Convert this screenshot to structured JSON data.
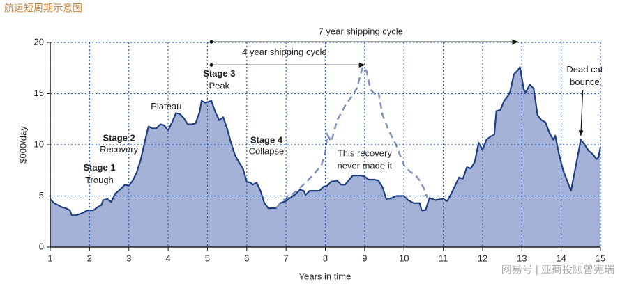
{
  "chart_data": {
    "type": "area",
    "title": "航运短周期示意图",
    "xlabel": "Years in time",
    "ylabel": "$000/day",
    "xlim": [
      1,
      15
    ],
    "ylim": [
      0,
      20
    ],
    "xticks": [
      1,
      2,
      3,
      4,
      5,
      6,
      7,
      8,
      9,
      10,
      11,
      12,
      13,
      14,
      15
    ],
    "yticks": [
      0,
      5,
      10,
      15,
      20
    ],
    "grid": true,
    "series": [
      {
        "style": "area",
        "color": "#a5b2d7",
        "line_color": "#1f3f80",
        "x": [
          1.0,
          1.1,
          1.2,
          1.3,
          1.4,
          1.5,
          1.55,
          1.65,
          1.8,
          1.95,
          2.1,
          2.2,
          2.3,
          2.35,
          2.45,
          2.55,
          2.65,
          2.8,
          2.9,
          3.0,
          3.1,
          3.2,
          3.3,
          3.4,
          3.5,
          3.6,
          3.7,
          3.8,
          3.9,
          4.0,
          4.1,
          4.2,
          4.3,
          4.4,
          4.5,
          4.6,
          4.7,
          4.8,
          4.85,
          4.95,
          5.1,
          5.2,
          5.3,
          5.4,
          5.5,
          5.6,
          5.7,
          5.8,
          5.9,
          6.0,
          6.1,
          6.15,
          6.25,
          6.35,
          6.45,
          6.55,
          6.75,
          6.85,
          7.0,
          7.1,
          7.25,
          7.35,
          7.45,
          7.5,
          7.6,
          7.7,
          7.85,
          7.95,
          8.05,
          8.15,
          8.3,
          8.4,
          8.5,
          8.7,
          8.9,
          9.0,
          9.1,
          9.25,
          9.35,
          9.45,
          9.55,
          9.7,
          9.8,
          10.0,
          10.1,
          10.25,
          10.4,
          10.45,
          10.55,
          10.65,
          10.8,
          11.0,
          11.1,
          11.2,
          11.3,
          11.4,
          11.5,
          11.6,
          11.7,
          11.8,
          11.9,
          12.0,
          12.1,
          12.2,
          12.3,
          12.35,
          12.45,
          12.55,
          12.65,
          12.7,
          12.8,
          12.9,
          12.95,
          13.05,
          13.1,
          13.2,
          13.3,
          13.4,
          13.5,
          13.6,
          13.7,
          13.8,
          13.85,
          13.95,
          14.05,
          14.15,
          14.25,
          14.35,
          14.45,
          14.5,
          14.6,
          14.7,
          14.8,
          14.9,
          14.95,
          15.0
        ],
        "values": [
          4.7,
          4.3,
          4.1,
          3.9,
          3.8,
          3.6,
          3.1,
          3.1,
          3.3,
          3.6,
          3.6,
          3.9,
          4.1,
          4.6,
          4.7,
          4.4,
          5.2,
          5.7,
          6.1,
          6.0,
          6.5,
          7.3,
          8.5,
          10.2,
          11.8,
          11.6,
          11.6,
          12.0,
          11.9,
          11.4,
          12.2,
          13.1,
          13.0,
          12.6,
          12.0,
          12.0,
          12.1,
          13.2,
          14.3,
          14.1,
          14.3,
          13.2,
          12.4,
          12.7,
          11.6,
          10.2,
          9.0,
          8.3,
          7.7,
          6.4,
          6.3,
          6.1,
          6.3,
          5.5,
          4.3,
          3.8,
          3.8,
          4.3,
          4.5,
          4.8,
          5.2,
          5.6,
          5.5,
          5.1,
          5.5,
          5.5,
          5.5,
          5.9,
          6.0,
          6.4,
          6.5,
          6.1,
          6.1,
          7.0,
          7.0,
          6.9,
          6.6,
          6.6,
          6.5,
          5.9,
          4.7,
          4.8,
          5.0,
          5.0,
          4.6,
          4.3,
          4.3,
          3.6,
          3.6,
          4.8,
          4.6,
          4.7,
          4.5,
          5.2,
          6.0,
          6.8,
          6.7,
          7.8,
          7.7,
          8.3,
          10.2,
          9.5,
          10.5,
          10.8,
          11.0,
          13.3,
          13.4,
          14.3,
          14.8,
          15.2,
          16.9,
          17.3,
          17.6,
          15.4,
          15.1,
          15.9,
          15.5,
          12.9,
          12.4,
          12.2,
          11.2,
          10.5,
          10.9,
          9.0,
          7.5,
          6.5,
          5.5,
          7.5,
          9.5,
          10.5,
          10.0,
          9.4,
          9.1,
          8.6,
          8.8,
          9.8
        ]
      },
      {
        "style": "dashed",
        "color": "#7f90bd",
        "x": [
          6.75,
          6.9,
          7.1,
          7.3,
          7.5,
          7.7,
          7.9,
          8.0,
          8.05,
          8.15,
          8.3,
          8.5,
          8.65,
          8.8,
          8.95,
          9.05,
          9.15,
          9.25,
          9.35,
          9.45,
          9.6,
          9.8,
          9.9,
          10.0,
          10.15,
          10.3,
          10.4,
          10.5,
          10.6
        ],
        "values": [
          3.8,
          4.5,
          5.0,
          5.6,
          6.3,
          7.1,
          8.0,
          9.3,
          11.0,
          10.3,
          12.4,
          13.8,
          14.6,
          15.5,
          17.6,
          17.2,
          15.4,
          15.0,
          15.2,
          13.0,
          11.5,
          10.0,
          9.0,
          8.0,
          7.4,
          7.0,
          6.5,
          5.8,
          4.8
        ]
      }
    ],
    "annotations": [
      "Stage 1",
      "Trough",
      "Stage 2",
      "Recovery",
      "Plateau",
      "Stage 3",
      "Peak",
      "Stage 4",
      "Collapse",
      "This recovery",
      "never made it",
      "Dead cat",
      "bounce",
      "7 year shipping cycle",
      "4 year shipping cycle"
    ],
    "watermark": "网易号 | 亚商投顾曾宪瑞"
  }
}
